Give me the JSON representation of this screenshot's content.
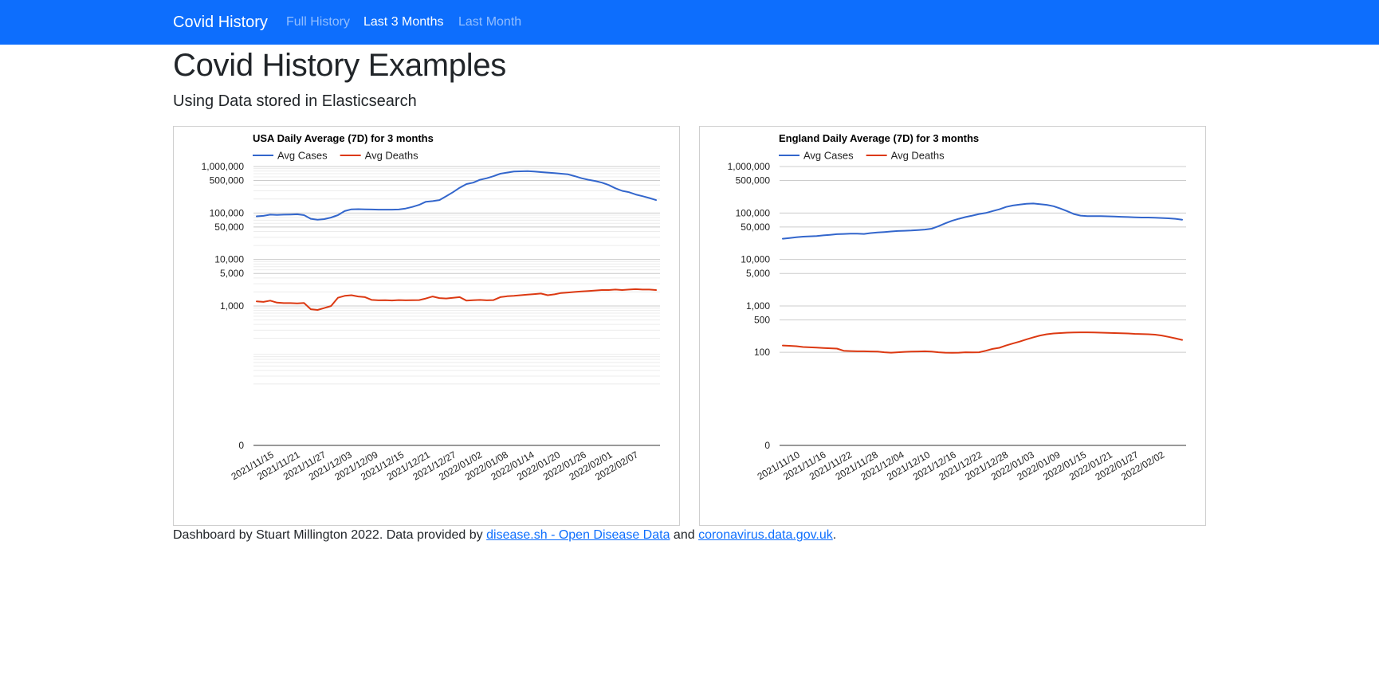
{
  "navbar": {
    "brand": "Covid History",
    "links": [
      {
        "label": "Full History",
        "active": false
      },
      {
        "label": "Last 3 Months",
        "active": true
      },
      {
        "label": "Last Month",
        "active": false
      }
    ]
  },
  "page": {
    "title": "Covid History Examples",
    "subtitle": "Using Data stored in Elasticsearch"
  },
  "footer": {
    "text_before": "Dashboard by Stuart Millington 2022. Data provided by ",
    "link1": "disease.sh - Open Disease Data",
    "text_middle": " and ",
    "link2": "coronavirus.data.gov.uk",
    "text_after": "."
  },
  "colors": {
    "navbar": "#0d6efd",
    "cases": "#3366cc",
    "deaths": "#dc3912"
  },
  "chart_data": [
    {
      "type": "line",
      "title": "USA Daily Average (7D) for 3 months",
      "yscale": "log",
      "grid": true,
      "legend": "top",
      "y_ticks": [
        0,
        1000,
        5000,
        10000,
        50000,
        100000,
        500000,
        1000000
      ],
      "y_tick_labels": [
        "0",
        "1,000",
        "5,000",
        "10,000",
        "50,000",
        "100,000",
        "500,000",
        "1,000,000"
      ],
      "x_tick_labels": [
        "2021/11/15",
        "2021/11/21",
        "2021/11/27",
        "2021/12/03",
        "2021/12/09",
        "2021/12/15",
        "2021/12/21",
        "2021/12/27",
        "2022/01/02",
        "2022/01/08",
        "2022/01/14",
        "2022/01/20",
        "2022/01/26",
        "2022/02/01",
        "2022/02/07"
      ],
      "x_start": "2021/11/15",
      "x_end": "2022/02/10",
      "series": [
        {
          "name": "Avg Cases",
          "color": "#3366cc",
          "values": [
            85000,
            87000,
            92000,
            91000,
            92000,
            93000,
            94000,
            90000,
            75000,
            72000,
            74000,
            80000,
            90000,
            110000,
            120000,
            121000,
            120000,
            119000,
            118000,
            118000,
            118000,
            119000,
            125000,
            135000,
            150000,
            175000,
            180000,
            190000,
            230000,
            280000,
            350000,
            420000,
            450000,
            520000,
            560000,
            620000,
            700000,
            740000,
            780000,
            790000,
            800000,
            780000,
            760000,
            740000,
            720000,
            700000,
            680000,
            620000,
            560000,
            520000,
            490000,
            450000,
            400000,
            340000,
            300000,
            280000,
            250000,
            230000,
            210000,
            190000
          ]
        },
        {
          "name": "Avg Deaths",
          "color": "#dc3912",
          "values": [
            1250,
            1220,
            1300,
            1180,
            1150,
            1150,
            1140,
            1160,
            850,
            820,
            900,
            1000,
            1500,
            1650,
            1700,
            1600,
            1550,
            1350,
            1320,
            1330,
            1310,
            1340,
            1320,
            1330,
            1340,
            1450,
            1600,
            1480,
            1450,
            1500,
            1550,
            1300,
            1330,
            1350,
            1320,
            1340,
            1550,
            1620,
            1650,
            1700,
            1750,
            1800,
            1850,
            1700,
            1780,
            1900,
            1950,
            2000,
            2050,
            2100,
            2150,
            2200,
            2200,
            2250,
            2200,
            2250,
            2300,
            2250,
            2250,
            2200
          ]
        }
      ]
    },
    {
      "type": "line",
      "title": "England Daily Average (7D) for 3 months",
      "yscale": "log",
      "grid": true,
      "legend": "top",
      "y_ticks": [
        0,
        100,
        500,
        1000,
        5000,
        10000,
        50000,
        100000,
        500000,
        1000000
      ],
      "y_tick_labels": [
        "0",
        "100",
        "500",
        "1,000",
        "5,000",
        "10,000",
        "50,000",
        "100,000",
        "500,000",
        "1,000,000"
      ],
      "x_tick_labels": [
        "2021/11/10",
        "2021/11/16",
        "2021/11/22",
        "2021/11/28",
        "2021/12/04",
        "2021/12/10",
        "2021/12/16",
        "2021/12/22",
        "2021/12/28",
        "2022/01/03",
        "2022/01/09",
        "2022/01/15",
        "2022/01/21",
        "2022/01/27",
        "2022/02/02"
      ],
      "x_start": "2021/11/10",
      "x_end": "2022/02/06",
      "series": [
        {
          "name": "Avg Cases",
          "color": "#3366cc",
          "values": [
            28000,
            29000,
            30000,
            31000,
            31500,
            32000,
            33000,
            34000,
            35000,
            35500,
            36000,
            36000,
            35500,
            37000,
            38000,
            39000,
            40000,
            41000,
            41500,
            42000,
            43000,
            44000,
            46000,
            52000,
            60000,
            68000,
            75000,
            82000,
            88000,
            95000,
            100000,
            110000,
            120000,
            135000,
            145000,
            152000,
            158000,
            160000,
            155000,
            150000,
            140000,
            125000,
            110000,
            95000,
            88000,
            86000,
            86000,
            86000,
            85000,
            84000,
            83000,
            82000,
            81000,
            80000,
            80000,
            79000,
            78000,
            77000,
            75000,
            72000
          ]
        },
        {
          "name": "Avg Deaths",
          "color": "#dc3912",
          "values": [
            140,
            138,
            135,
            130,
            128,
            126,
            124,
            122,
            120,
            108,
            106,
            105,
            105,
            104,
            103,
            100,
            98,
            100,
            102,
            103,
            104,
            105,
            103,
            100,
            98,
            97,
            98,
            100,
            99,
            100,
            108,
            118,
            125,
            140,
            155,
            170,
            190,
            210,
            230,
            245,
            255,
            260,
            265,
            268,
            270,
            270,
            268,
            265,
            262,
            260,
            258,
            255,
            250,
            248,
            245,
            240,
            230,
            215,
            200,
            185
          ]
        }
      ]
    }
  ]
}
